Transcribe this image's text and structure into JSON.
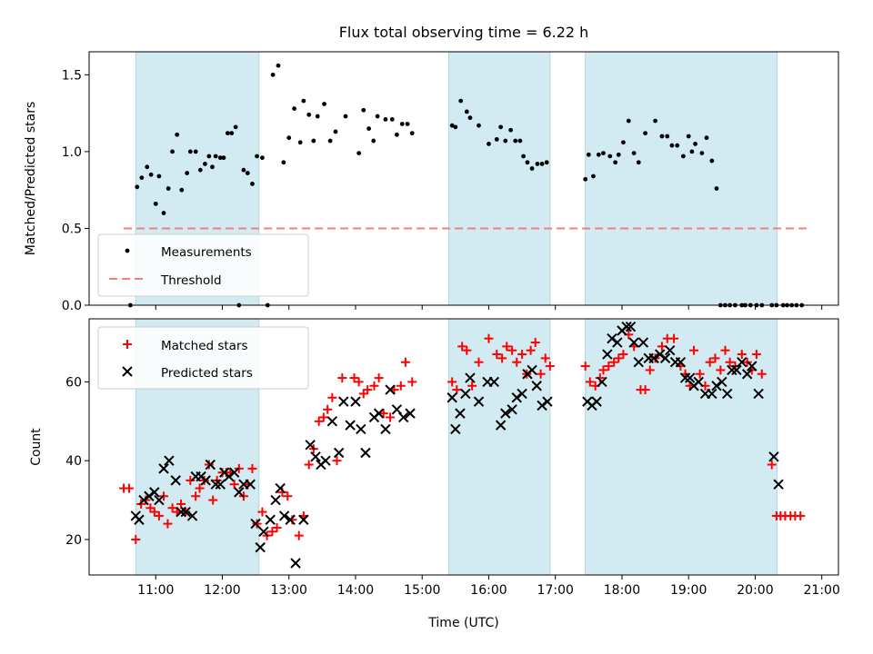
{
  "chart_data": [
    {
      "type": "scatter",
      "title": "Flux total observing time = 6.22 h",
      "ylabel": "Matched/Predicted stars",
      "xlabel": "",
      "xlim": [
        10.0,
        21.25
      ],
      "ylim": [
        0.0,
        1.65
      ],
      "yticks": [
        0.0,
        0.5,
        1.0,
        1.5
      ],
      "ytick_labels": [
        "0.0",
        "0.5",
        "1.0",
        "1.5"
      ],
      "grid": false,
      "legend_position": "lower-left",
      "shaded_windows": [
        [
          10.7,
          12.55
        ],
        [
          15.4,
          16.92
        ],
        [
          17.45,
          20.33
        ]
      ],
      "series": [
        {
          "name": "Measurements",
          "marker": "dot",
          "color": "#000000",
          "x": [
            10.62,
            10.72,
            10.79,
            10.87,
            10.93,
            11.0,
            11.05,
            11.12,
            11.19,
            11.25,
            11.32,
            11.39,
            11.47,
            11.52,
            11.6,
            11.67,
            11.74,
            11.8,
            11.85,
            11.9,
            11.97,
            12.02,
            12.08,
            12.14,
            12.2,
            12.25,
            12.32,
            12.38,
            12.45,
            12.52,
            12.6,
            12.68,
            12.76,
            12.84,
            12.92,
            13.0,
            13.08,
            13.17,
            13.22,
            13.3,
            13.37,
            13.43,
            13.53,
            13.62,
            13.7,
            13.85,
            14.05,
            14.12,
            14.2,
            14.27,
            14.33,
            14.45,
            14.55,
            14.62,
            14.7,
            14.78,
            14.85,
            15.45,
            15.5,
            15.58,
            15.67,
            15.72,
            15.85,
            16.0,
            16.12,
            16.18,
            16.25,
            16.33,
            16.4,
            16.47,
            16.52,
            16.58,
            16.65,
            16.73,
            16.8,
            16.87,
            17.45,
            17.5,
            17.57,
            17.65,
            17.72,
            17.82,
            17.9,
            17.95,
            18.02,
            18.1,
            18.18,
            18.25,
            18.35,
            18.5,
            18.6,
            18.68,
            18.75,
            18.83,
            18.92,
            19.0,
            19.05,
            19.1,
            19.2,
            19.27,
            19.35,
            19.42,
            19.48,
            19.55,
            19.62,
            19.7,
            19.8,
            19.85,
            19.93,
            20.02,
            20.1,
            20.25,
            20.32,
            20.42,
            20.48,
            20.55,
            20.62,
            20.7
          ],
          "y": [
            0.0,
            0.77,
            0.83,
            0.9,
            0.85,
            0.66,
            0.84,
            0.6,
            0.76,
            1.0,
            1.11,
            0.75,
            0.86,
            1.0,
            1.0,
            0.88,
            0.92,
            0.97,
            0.9,
            0.97,
            0.96,
            0.96,
            1.12,
            1.12,
            1.16,
            0.0,
            0.88,
            0.86,
            0.79,
            0.97,
            0.96,
            0.0,
            1.5,
            1.56,
            0.93,
            1.09,
            1.28,
            1.06,
            1.33,
            1.24,
            1.07,
            1.23,
            1.31,
            1.07,
            1.13,
            1.23,
            0.99,
            1.27,
            1.15,
            1.07,
            1.23,
            1.21,
            1.21,
            1.11,
            1.18,
            1.18,
            1.12,
            1.17,
            1.16,
            1.33,
            1.26,
            1.22,
            1.17,
            1.05,
            1.08,
            1.16,
            1.07,
            1.14,
            1.07,
            1.07,
            0.97,
            0.93,
            0.89,
            0.92,
            0.92,
            0.93,
            0.82,
            0.98,
            0.84,
            0.98,
            0.99,
            0.97,
            0.93,
            0.98,
            1.06,
            1.2,
            0.99,
            0.93,
            1.12,
            1.2,
            1.1,
            1.1,
            1.04,
            1.04,
            0.97,
            1.1,
            1.0,
            1.05,
            0.99,
            1.09,
            0.94,
            0.76,
            0.0,
            0.0,
            0.0,
            0.0,
            0.0,
            0.0,
            0.0,
            0.0,
            0.0,
            0.0,
            0.0,
            0.0,
            0.0,
            0.0,
            0.0,
            0.0
          ]
        },
        {
          "name": "Threshold",
          "marker": "dashed-line",
          "color": "#f08080",
          "x": [
            10.52,
            20.82
          ],
          "y": [
            0.5,
            0.5
          ]
        }
      ]
    },
    {
      "type": "scatter",
      "title": "",
      "ylabel": "Count",
      "xlabel": "Time (UTC)",
      "xlim": [
        10.0,
        21.25
      ],
      "ylim": [
        11,
        76
      ],
      "yticks": [
        20,
        40,
        60
      ],
      "ytick_labels": [
        "20",
        "40",
        "60"
      ],
      "xticks": [
        11,
        12,
        13,
        14,
        15,
        16,
        17,
        18,
        19,
        20,
        21
      ],
      "xtick_labels": [
        "11:00",
        "12:00",
        "13:00",
        "14:00",
        "15:00",
        "16:00",
        "17:00",
        "18:00",
        "19:00",
        "20:00",
        "21:00"
      ],
      "grid": false,
      "legend_position": "upper-left",
      "shaded_windows": [
        [
          10.7,
          12.55
        ],
        [
          15.4,
          16.92
        ],
        [
          17.45,
          20.33
        ]
      ],
      "series": [
        {
          "name": "Matched stars",
          "marker": "plus",
          "color": "#ff0000",
          "x": [
            10.52,
            10.6,
            10.7,
            10.78,
            10.85,
            10.92,
            10.98,
            11.05,
            11.12,
            11.18,
            11.25,
            11.32,
            11.38,
            11.45,
            11.52,
            11.6,
            11.66,
            11.73,
            11.8,
            11.86,
            11.92,
            12.0,
            12.06,
            12.12,
            12.18,
            12.25,
            12.32,
            12.38,
            12.45,
            12.52,
            12.6,
            12.67,
            12.75,
            12.82,
            12.9,
            12.98,
            13.05,
            13.15,
            13.22,
            13.3,
            13.37,
            13.45,
            13.52,
            13.58,
            13.65,
            13.72,
            13.8,
            13.98,
            14.05,
            14.12,
            14.18,
            14.28,
            14.35,
            14.42,
            14.52,
            14.58,
            14.68,
            14.75,
            14.85,
            15.45,
            15.52,
            15.6,
            15.67,
            15.75,
            15.85,
            16.0,
            16.12,
            16.2,
            16.27,
            16.35,
            16.42,
            16.5,
            16.57,
            16.63,
            16.7,
            16.78,
            16.85,
            16.92,
            17.45,
            17.52,
            17.6,
            17.67,
            17.72,
            17.8,
            17.88,
            17.95,
            18.02,
            18.1,
            18.18,
            18.28,
            18.35,
            18.42,
            18.5,
            18.6,
            18.68,
            18.78,
            18.88,
            18.95,
            19.02,
            19.08,
            19.17,
            19.25,
            19.32,
            19.4,
            19.48,
            19.55,
            19.62,
            19.7,
            19.8,
            19.88,
            19.95,
            20.02,
            20.1,
            20.25,
            20.32,
            20.38,
            20.45,
            20.53,
            20.6,
            20.68
          ],
          "y": [
            33,
            33,
            20,
            29,
            30,
            28,
            27,
            26,
            31,
            24,
            28,
            27,
            29,
            27,
            35,
            31,
            33,
            35,
            39,
            30,
            35,
            37,
            37,
            37,
            34,
            38,
            31,
            34,
            38,
            24,
            27,
            21,
            22,
            23,
            32,
            31,
            25,
            21,
            26,
            39,
            43,
            50,
            51,
            53,
            56,
            40,
            61,
            61,
            60,
            57,
            58,
            59,
            61,
            52,
            51,
            58,
            59,
            65,
            60,
            60,
            58,
            69,
            68,
            59,
            65,
            71,
            67,
            66,
            69,
            68,
            65,
            67,
            62,
            68,
            70,
            62,
            66,
            64,
            64,
            60,
            59,
            61,
            63,
            64,
            65,
            66,
            67,
            72,
            69,
            58,
            58,
            63,
            66,
            69,
            71,
            71,
            64,
            62,
            59,
            68,
            62,
            59,
            65,
            66,
            63,
            68,
            65,
            64,
            67,
            65,
            63,
            67,
            62,
            39,
            26,
            26,
            26,
            26,
            26,
            26
          ],
          "clip_note": ""
        },
        {
          "name": "Predicted stars",
          "marker": "x",
          "color": "#000000",
          "x": [
            10.7,
            10.75,
            10.82,
            10.9,
            10.98,
            11.05,
            11.12,
            11.2,
            11.3,
            11.38,
            11.45,
            11.55,
            11.6,
            11.68,
            11.75,
            11.82,
            11.9,
            11.97,
            12.03,
            12.1,
            12.18,
            12.25,
            12.32,
            12.42,
            12.5,
            12.57,
            12.62,
            12.72,
            12.8,
            12.87,
            12.93,
            13.02,
            13.1,
            13.22,
            13.32,
            13.4,
            13.48,
            13.55,
            13.65,
            13.75,
            13.82,
            13.92,
            14.0,
            14.08,
            14.15,
            14.28,
            14.35,
            14.45,
            14.52,
            14.62,
            14.72,
            14.82,
            15.45,
            15.5,
            15.57,
            15.65,
            15.72,
            15.85,
            15.98,
            16.08,
            16.18,
            16.25,
            16.35,
            16.42,
            16.5,
            16.58,
            16.65,
            16.72,
            16.8,
            16.88,
            17.48,
            17.55,
            17.62,
            17.7,
            17.78,
            17.85,
            17.93,
            18.0,
            18.07,
            18.13,
            18.18,
            18.25,
            18.32,
            18.4,
            18.48,
            18.57,
            18.65,
            18.72,
            18.8,
            18.88,
            18.95,
            19.02,
            19.08,
            19.15,
            19.25,
            19.35,
            19.42,
            19.5,
            19.58,
            19.65,
            19.72,
            19.8,
            19.88,
            19.95,
            20.05,
            20.28,
            20.35
          ],
          "y": [
            26,
            25,
            30,
            31,
            32,
            30,
            38,
            40,
            35,
            27,
            27,
            26,
            36,
            36,
            35,
            39,
            34,
            34,
            37,
            36,
            37,
            32,
            34,
            34,
            24,
            18,
            22,
            25,
            30,
            33,
            26,
            25,
            14,
            25,
            44,
            41,
            39,
            40,
            50,
            42,
            55,
            49,
            55,
            48,
            42,
            51,
            52,
            48,
            58,
            53,
            51,
            52,
            56,
            48,
            52,
            57,
            61,
            55,
            60,
            60,
            49,
            52,
            53,
            56,
            57,
            62,
            63,
            59,
            54,
            55,
            55,
            54,
            55,
            60,
            67,
            71,
            70,
            73,
            74,
            74,
            70,
            65,
            70,
            66,
            66,
            67,
            66,
            68,
            65,
            65,
            61,
            61,
            59,
            60,
            57,
            57,
            59,
            60,
            57,
            63,
            63,
            65,
            62,
            64,
            57,
            41,
            34
          ]
        }
      ]
    }
  ]
}
